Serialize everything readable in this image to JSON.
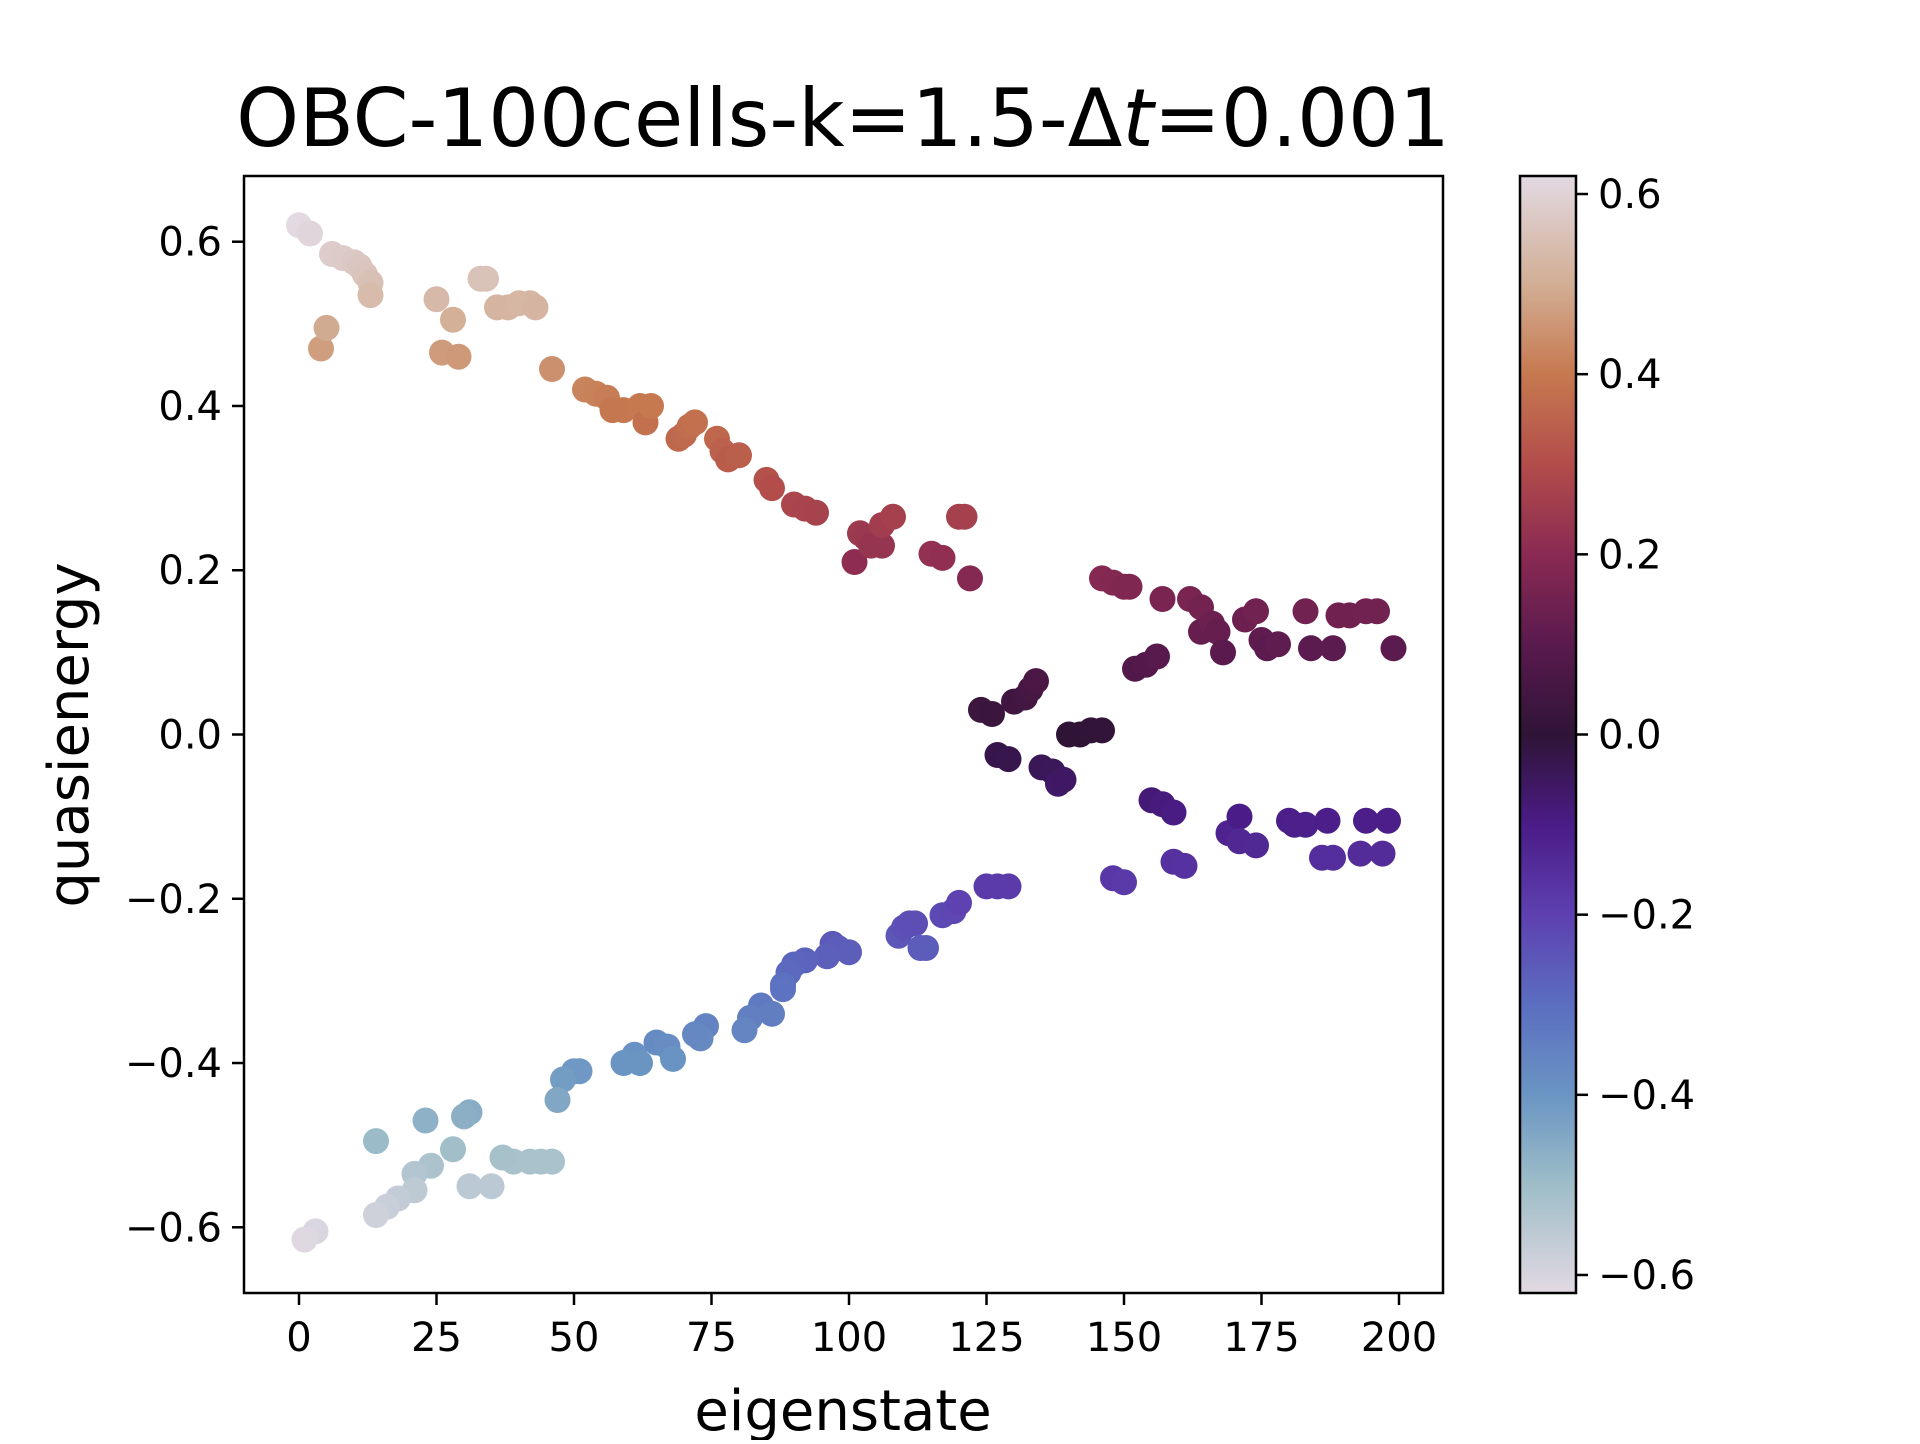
{
  "chart_data": {
    "type": "scatter",
    "title": "OBC-100cells-k=1.5-Δt=0.001",
    "title_parts": {
      "prefix": "OBC-100cells-k=1.5-Δ",
      "italic": "t",
      "suffix": "=0.001"
    },
    "xlabel": "eigenstate",
    "ylabel": "quasienergy",
    "xlim": [
      -10,
      208
    ],
    "ylim": [
      -0.68,
      0.68
    ],
    "xticks": [
      0,
      25,
      50,
      75,
      100,
      125,
      150,
      175,
      200
    ],
    "xtick_labels": [
      "0",
      "25",
      "50",
      "75",
      "100",
      "125",
      "150",
      "175",
      "200"
    ],
    "yticks": [
      -0.6,
      -0.4,
      -0.2,
      0.0,
      0.2,
      0.4,
      0.6
    ],
    "ytick_labels": [
      "−0.6",
      "−0.4",
      "−0.2",
      "0.0",
      "0.2",
      "0.4",
      "0.6"
    ],
    "grid": false,
    "colormap": "twilight_shifted",
    "colorbar": {
      "range": [
        -0.62,
        0.62
      ],
      "ticks": [
        -0.6,
        -0.4,
        -0.2,
        0.0,
        0.2,
        0.4,
        0.6
      ],
      "tick_labels": [
        "−0.6",
        "−0.4",
        "−0.2",
        "0.0",
        "0.2",
        "0.4",
        "0.6"
      ],
      "stops": [
        {
          "v": -0.62,
          "color": "#e2d9e2"
        },
        {
          "v": -0.5,
          "color": "#9ebdc8"
        },
        {
          "v": -0.4,
          "color": "#6a95c3"
        },
        {
          "v": -0.3,
          "color": "#5b6ec0"
        },
        {
          "v": -0.2,
          "color": "#5e40b0"
        },
        {
          "v": -0.1,
          "color": "#4a1c87"
        },
        {
          "v": 0.0,
          "color": "#2f1436"
        },
        {
          "v": 0.1,
          "color": "#5a1a4e"
        },
        {
          "v": 0.2,
          "color": "#8a2a52"
        },
        {
          "v": 0.3,
          "color": "#b34d4b"
        },
        {
          "v": 0.4,
          "color": "#c6794f"
        },
        {
          "v": 0.5,
          "color": "#d2ae94"
        },
        {
          "v": 0.62,
          "color": "#e2d9e2"
        }
      ]
    },
    "series": [
      {
        "points": [
          [
            0,
            0.62
          ],
          [
            2,
            0.61
          ],
          [
            4,
            0.47
          ],
          [
            5,
            0.495
          ],
          [
            6,
            0.585
          ],
          [
            8,
            0.58
          ],
          [
            10,
            0.575
          ],
          [
            11,
            0.57
          ],
          [
            12,
            0.56
          ],
          [
            13,
            0.55
          ],
          [
            13,
            0.535
          ],
          [
            25,
            0.53
          ],
          [
            26,
            0.465
          ],
          [
            28,
            0.505
          ],
          [
            29,
            0.46
          ],
          [
            33,
            0.555
          ],
          [
            34,
            0.555
          ],
          [
            36,
            0.52
          ],
          [
            38,
            0.52
          ],
          [
            40,
            0.525
          ],
          [
            42,
            0.525
          ],
          [
            43,
            0.52
          ],
          [
            46,
            0.445
          ],
          [
            52,
            0.42
          ],
          [
            54,
            0.415
          ],
          [
            56,
            0.41
          ],
          [
            57,
            0.395
          ],
          [
            59,
            0.395
          ],
          [
            62,
            0.4
          ],
          [
            63,
            0.38
          ],
          [
            64,
            0.4
          ],
          [
            69,
            0.36
          ],
          [
            70,
            0.365
          ],
          [
            71,
            0.375
          ],
          [
            72,
            0.38
          ],
          [
            76,
            0.36
          ],
          [
            77,
            0.345
          ],
          [
            78,
            0.335
          ],
          [
            80,
            0.34
          ],
          [
            85,
            0.31
          ],
          [
            86,
            0.3
          ],
          [
            90,
            0.28
          ],
          [
            92,
            0.275
          ],
          [
            94,
            0.27
          ],
          [
            101,
            0.21
          ],
          [
            102,
            0.245
          ],
          [
            103,
            0.24
          ],
          [
            104,
            0.23
          ],
          [
            106,
            0.23
          ],
          [
            106,
            0.255
          ],
          [
            108,
            0.265
          ],
          [
            115,
            0.22
          ],
          [
            117,
            0.215
          ],
          [
            120,
            0.265
          ],
          [
            121,
            0.265
          ],
          [
            122,
            0.19
          ],
          [
            146,
            0.19
          ],
          [
            148,
            0.185
          ],
          [
            150,
            0.18
          ],
          [
            151,
            0.18
          ],
          [
            157,
            0.165
          ],
          [
            162,
            0.165
          ],
          [
            164,
            0.155
          ],
          [
            164,
            0.125
          ],
          [
            166,
            0.135
          ],
          [
            167,
            0.125
          ],
          [
            168,
            0.1
          ],
          [
            172,
            0.14
          ],
          [
            174,
            0.15
          ],
          [
            175,
            0.115
          ],
          [
            176,
            0.105
          ],
          [
            178,
            0.11
          ],
          [
            183,
            0.15
          ],
          [
            184,
            0.105
          ],
          [
            188,
            0.105
          ],
          [
            189,
            0.145
          ],
          [
            191,
            0.145
          ],
          [
            194,
            0.15
          ],
          [
            196,
            0.15
          ],
          [
            199,
            0.105
          ],
          [
            152,
            0.08
          ],
          [
            154,
            0.085
          ],
          [
            156,
            0.095
          ],
          [
            124,
            0.03
          ],
          [
            126,
            0.025
          ],
          [
            127,
            -0.025
          ],
          [
            129,
            -0.03
          ],
          [
            130,
            0.04
          ],
          [
            132,
            0.045
          ],
          [
            133,
            0.055
          ],
          [
            134,
            0.065
          ],
          [
            135,
            -0.04
          ],
          [
            137,
            -0.045
          ],
          [
            138,
            -0.06
          ],
          [
            139,
            -0.055
          ],
          [
            140,
            0.0
          ],
          [
            142,
            0.0
          ],
          [
            144,
            0.005
          ],
          [
            146,
            0.005
          ],
          [
            155,
            -0.08
          ],
          [
            157,
            -0.085
          ],
          [
            159,
            -0.095
          ],
          [
            169,
            -0.12
          ],
          [
            171,
            -0.1
          ],
          [
            171,
            -0.13
          ],
          [
            174,
            -0.135
          ],
          [
            180,
            -0.105
          ],
          [
            181,
            -0.11
          ],
          [
            183,
            -0.11
          ],
          [
            186,
            -0.15
          ],
          [
            187,
            -0.105
          ],
          [
            188,
            -0.15
          ],
          [
            193,
            -0.145
          ],
          [
            194,
            -0.105
          ],
          [
            197,
            -0.145
          ],
          [
            198,
            -0.105
          ],
          [
            148,
            -0.175
          ],
          [
            150,
            -0.18
          ],
          [
            159,
            -0.155
          ],
          [
            161,
            -0.16
          ],
          [
            125,
            -0.185
          ],
          [
            127,
            -0.185
          ],
          [
            129,
            -0.185
          ],
          [
            117,
            -0.22
          ],
          [
            119,
            -0.215
          ],
          [
            120,
            -0.205
          ],
          [
            109,
            -0.245
          ],
          [
            110,
            -0.235
          ],
          [
            111,
            -0.23
          ],
          [
            112,
            -0.23
          ],
          [
            113,
            -0.26
          ],
          [
            114,
            -0.26
          ],
          [
            97,
            -0.255
          ],
          [
            98,
            -0.26
          ],
          [
            100,
            -0.265
          ],
          [
            96,
            -0.27
          ],
          [
            92,
            -0.275
          ],
          [
            90,
            -0.28
          ],
          [
            89,
            -0.29
          ],
          [
            88,
            -0.305
          ],
          [
            88,
            -0.31
          ],
          [
            84,
            -0.33
          ],
          [
            86,
            -0.34
          ],
          [
            82,
            -0.345
          ],
          [
            81,
            -0.36
          ],
          [
            74,
            -0.355
          ],
          [
            73,
            -0.37
          ],
          [
            72,
            -0.365
          ],
          [
            65,
            -0.375
          ],
          [
            67,
            -0.38
          ],
          [
            68,
            -0.395
          ],
          [
            61,
            -0.39
          ],
          [
            62,
            -0.4
          ],
          [
            59,
            -0.4
          ],
          [
            50,
            -0.41
          ],
          [
            51,
            -0.41
          ],
          [
            48,
            -0.42
          ],
          [
            47,
            -0.445
          ],
          [
            46,
            -0.52
          ],
          [
            44,
            -0.52
          ],
          [
            42,
            -0.52
          ],
          [
            39,
            -0.52
          ],
          [
            37,
            -0.515
          ],
          [
            35,
            -0.55
          ],
          [
            31,
            -0.55
          ],
          [
            31,
            -0.46
          ],
          [
            30,
            -0.465
          ],
          [
            28,
            -0.505
          ],
          [
            24,
            -0.525
          ],
          [
            23,
            -0.47
          ],
          [
            21,
            -0.535
          ],
          [
            21,
            -0.555
          ],
          [
            18,
            -0.565
          ],
          [
            16,
            -0.575
          ],
          [
            14,
            -0.585
          ],
          [
            14,
            -0.495
          ],
          [
            3,
            -0.605
          ],
          [
            1,
            -0.615
          ]
        ]
      }
    ]
  }
}
